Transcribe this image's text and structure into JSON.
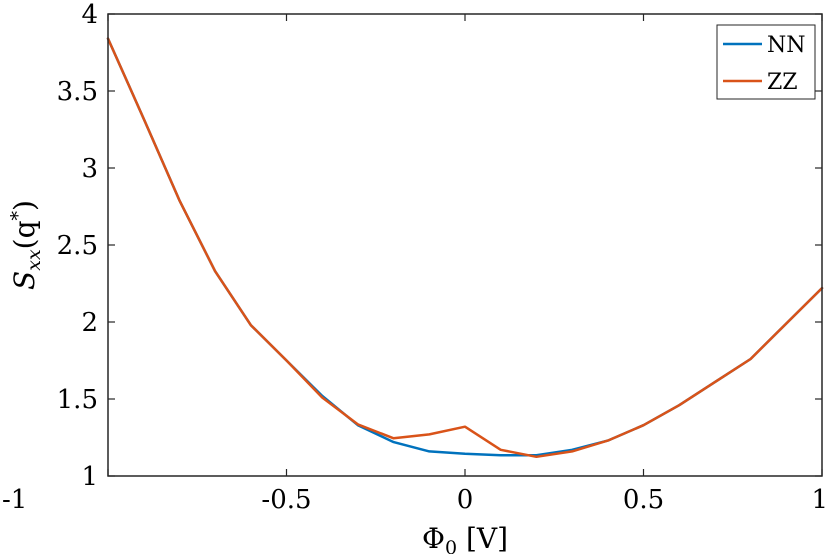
{
  "chart_data": {
    "type": "line",
    "xlabel": "Φ0 [V]",
    "xlabel_parts": {
      "main": "Φ",
      "sub": "0",
      "unit": " [V]"
    },
    "ylabel": "Sxx(q*)",
    "ylabel_parts": {
      "main": "S",
      "sub": "xx",
      "open": "(q",
      "sup": "*",
      "close": ")"
    },
    "xlim": [
      -1,
      1
    ],
    "ylim": [
      1,
      4
    ],
    "xticks": [
      -1,
      -0.5,
      0,
      0.5,
      1
    ],
    "xtick_labels": [
      "-1",
      "-0.5",
      "0",
      "0.5",
      "1"
    ],
    "yticks": [
      1,
      1.5,
      2,
      2.5,
      3,
      3.5,
      4
    ],
    "ytick_labels": [
      "1",
      "1.5",
      "2",
      "2.5",
      "3",
      "3.5",
      "4"
    ],
    "grid": false,
    "legend_position": "top-right",
    "series": [
      {
        "name": "NN",
        "color": "#0072BD",
        "x": [
          -1,
          -0.9,
          -0.8,
          -0.7,
          -0.6,
          -0.5,
          -0.4,
          -0.3,
          -0.2,
          -0.1,
          0,
          0.1,
          0.2,
          0.3,
          0.4,
          0.5,
          0.6,
          0.7,
          0.8,
          0.9,
          1
        ],
        "y": [
          3.84,
          3.32,
          2.79,
          2.33,
          1.98,
          1.75,
          1.52,
          1.33,
          1.22,
          1.16,
          1.145,
          1.135,
          1.135,
          1.17,
          1.23,
          1.33,
          1.46,
          1.61,
          1.76,
          1.99,
          2.22
        ]
      },
      {
        "name": "ZZ",
        "color": "#D95319",
        "x": [
          -1,
          -0.9,
          -0.8,
          -0.7,
          -0.6,
          -0.5,
          -0.4,
          -0.3,
          -0.2,
          -0.1,
          0,
          0.1,
          0.2,
          0.3,
          0.4,
          0.5,
          0.6,
          0.7,
          0.8,
          0.9,
          1
        ],
        "y": [
          3.84,
          3.32,
          2.79,
          2.33,
          1.98,
          1.75,
          1.51,
          1.335,
          1.245,
          1.27,
          1.32,
          1.17,
          1.125,
          1.16,
          1.23,
          1.33,
          1.46,
          1.61,
          1.76,
          1.99,
          2.22
        ]
      }
    ]
  }
}
